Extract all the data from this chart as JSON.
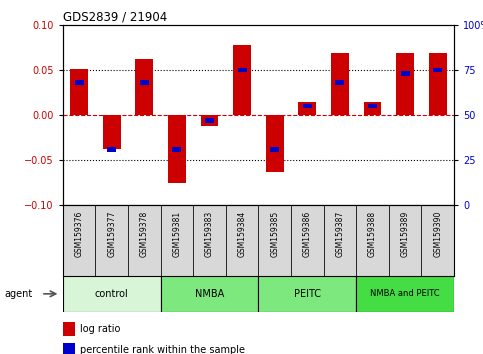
{
  "title": "GDS2839 / 21904",
  "samples": [
    "GSM159376",
    "GSM159377",
    "GSM159378",
    "GSM159381",
    "GSM159383",
    "GSM159384",
    "GSM159385",
    "GSM159386",
    "GSM159387",
    "GSM159388",
    "GSM159389",
    "GSM159390"
  ],
  "log_ratio": [
    0.051,
    -0.038,
    0.062,
    -0.075,
    -0.012,
    0.078,
    -0.063,
    0.014,
    0.069,
    0.015,
    0.069,
    0.069
  ],
  "percentile_rank": [
    0.68,
    0.31,
    0.68,
    0.31,
    0.47,
    0.75,
    0.31,
    0.55,
    0.68,
    0.55,
    0.73,
    0.75
  ],
  "groups": [
    {
      "label": "control",
      "start": 0,
      "end": 3,
      "color": "#d8f5d8"
    },
    {
      "label": "NMBA",
      "start": 3,
      "end": 6,
      "color": "#7de87d"
    },
    {
      "label": "PEITC",
      "start": 6,
      "end": 9,
      "color": "#7de87d"
    },
    {
      "label": "NMBA and PEITC",
      "start": 9,
      "end": 12,
      "color": "#44dd44"
    }
  ],
  "ylim": [
    -0.1,
    0.1
  ],
  "yticks_left": [
    -0.1,
    -0.05,
    0,
    0.05,
    0.1
  ],
  "yticks_right": [
    0,
    25,
    50,
    75,
    100
  ],
  "bar_color": "#cc0000",
  "pct_color": "#0000cc",
  "sample_bg": "#d8d8d8",
  "plot_bg": "#ffffff",
  "zero_line_color": "#cc0000",
  "bar_width": 0.55,
  "pct_bar_width": 0.28,
  "pct_bar_height": 0.005
}
